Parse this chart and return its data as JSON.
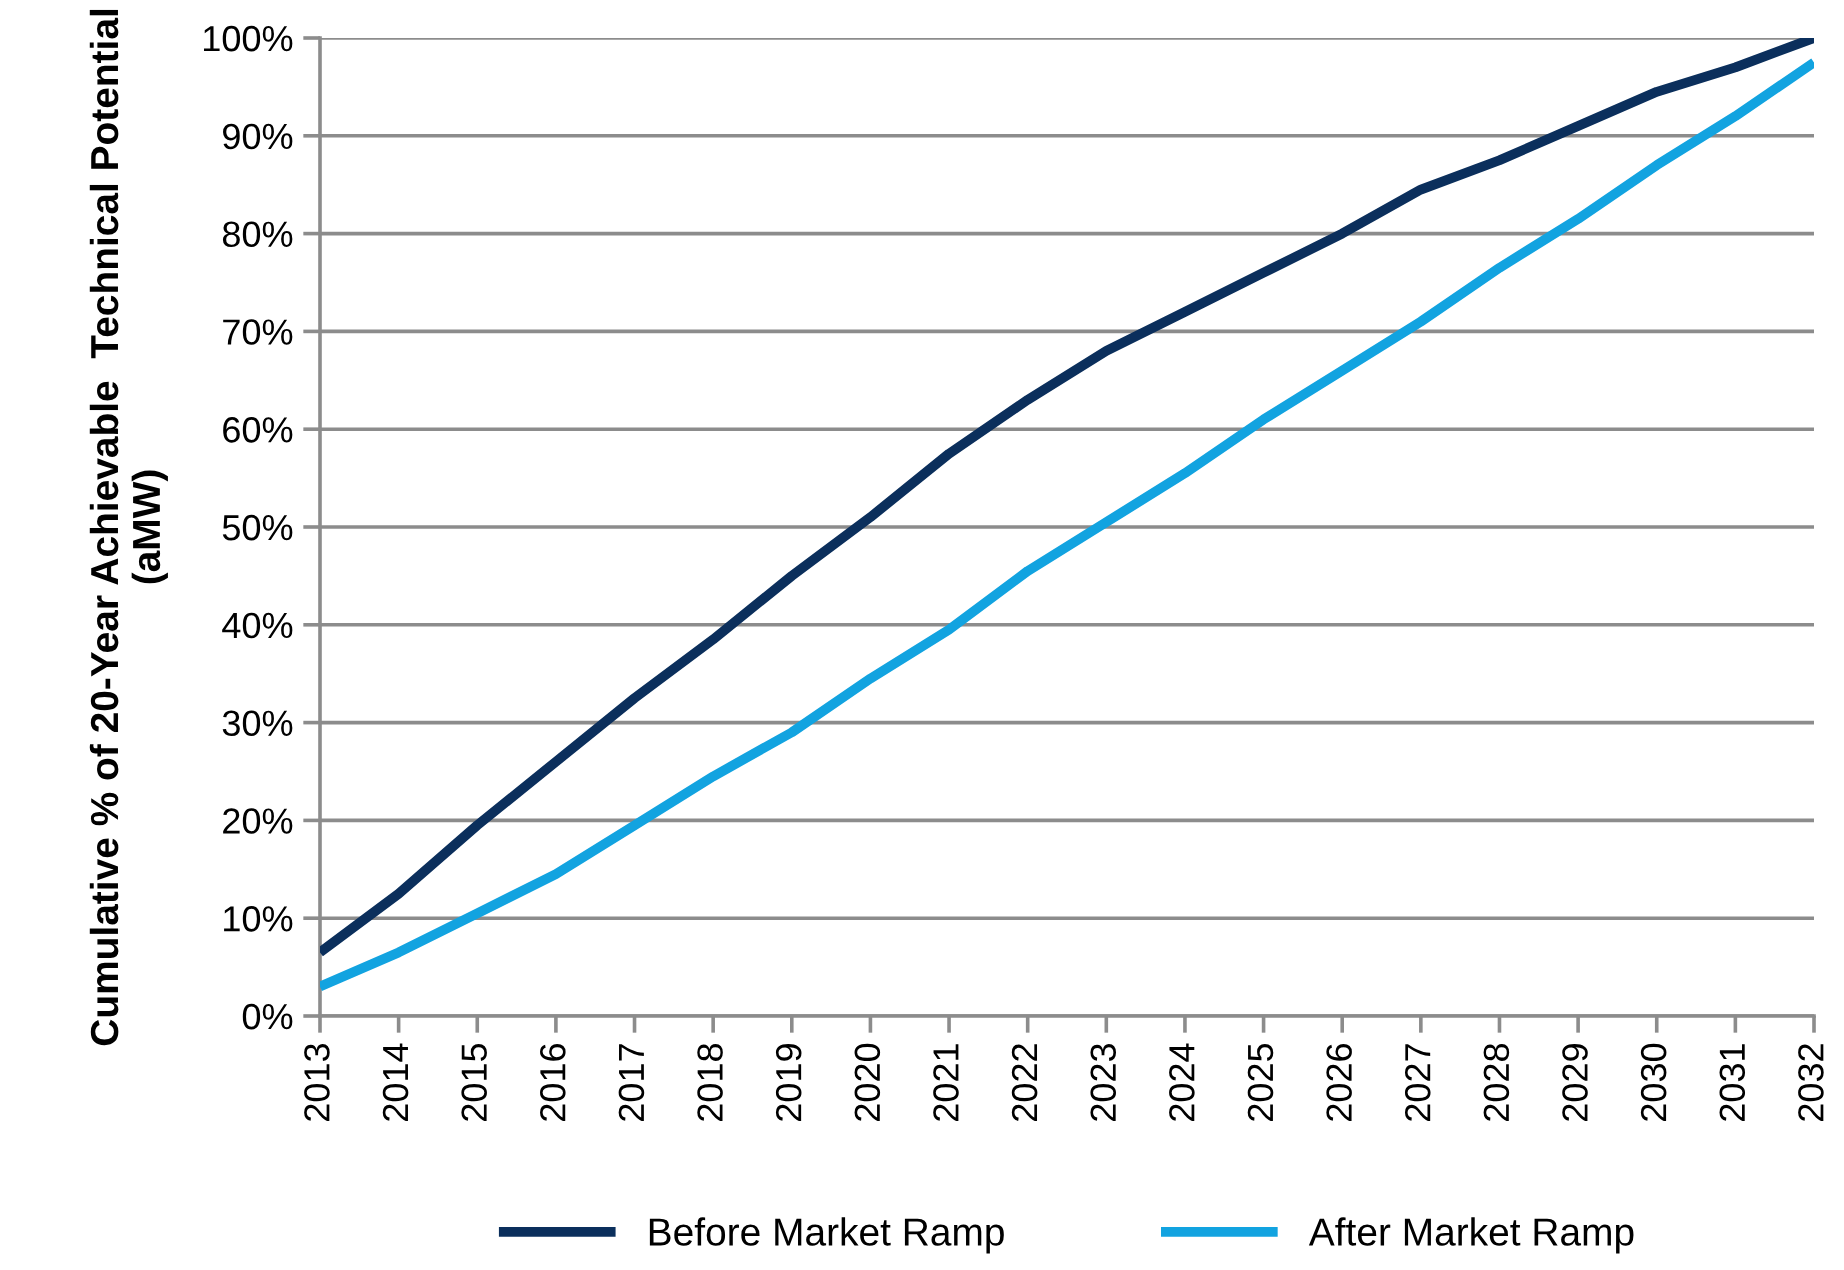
{
  "chart_data": {
    "type": "line",
    "ylabel": "Cumulative % of 20-Year Achievable  Technical Potential (aMW)",
    "categories": [
      "2013",
      "2014",
      "2015",
      "2016",
      "2017",
      "2018",
      "2019",
      "2020",
      "2021",
      "2022",
      "2023",
      "2024",
      "2025",
      "2026",
      "2027",
      "2028",
      "2029",
      "2030",
      "2031",
      "2032"
    ],
    "series": [
      {
        "name": "Before Market Ramp",
        "color": "#0b2f5c",
        "values": [
          6.5,
          12.5,
          19.5,
          26,
          32.5,
          38.5,
          45,
          51,
          57.5,
          63,
          68,
          72,
          76,
          80,
          84.5,
          87.5,
          91,
          94.5,
          97,
          100
        ]
      },
      {
        "name": "After Market Ramp",
        "color": "#12a3e0",
        "values": [
          3,
          6.5,
          10.5,
          14.5,
          19.5,
          24.5,
          29,
          34.5,
          39.5,
          45.5,
          50.5,
          55.5,
          61,
          66,
          71,
          76.5,
          81.5,
          87,
          92,
          97.5
        ]
      }
    ],
    "ylim": [
      0,
      100
    ],
    "yticks": [
      {
        "value": 0,
        "label": "0%"
      },
      {
        "value": 10,
        "label": "10%"
      },
      {
        "value": 20,
        "label": "20%"
      },
      {
        "value": 30,
        "label": "30%"
      },
      {
        "value": 40,
        "label": "40%"
      },
      {
        "value": 50,
        "label": "50%"
      },
      {
        "value": 60,
        "label": "60%"
      },
      {
        "value": 70,
        "label": "70%"
      },
      {
        "value": 80,
        "label": "80%"
      },
      {
        "value": 90,
        "label": "90%"
      },
      {
        "value": 100,
        "label": "100%"
      }
    ],
    "grid": "y",
    "legend": "bottom",
    "marker": "none",
    "line_style": "solid"
  }
}
